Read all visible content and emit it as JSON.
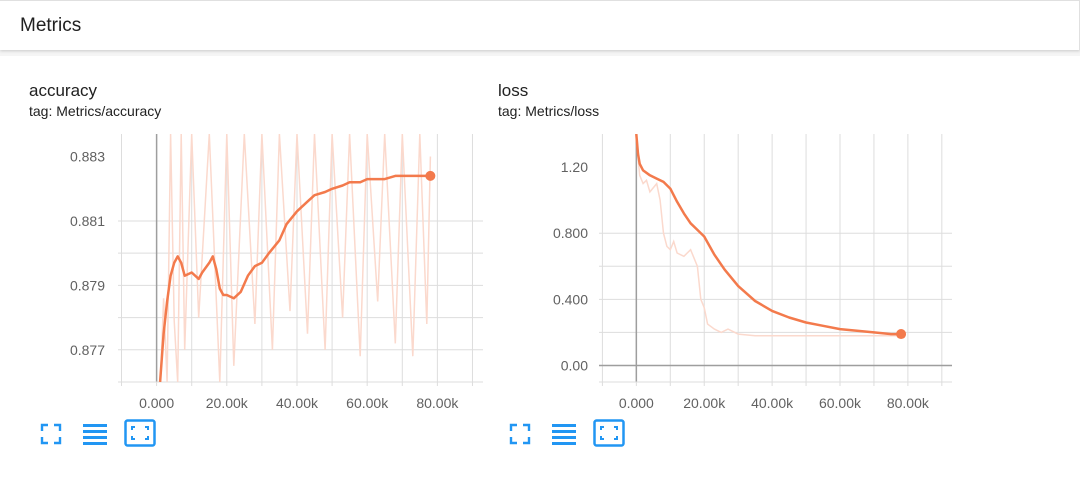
{
  "header": {
    "title": "Metrics"
  },
  "colors": {
    "line": "#f37a4c",
    "raw": "#fbd9cd",
    "icon": "#2196f3",
    "grid": "#dddddd",
    "axis": "#9e9e9e"
  },
  "icons": [
    "fit-domain-icon",
    "toggle-log-scale-icon",
    "expand-chart-icon"
  ],
  "cards": [
    {
      "title": "accuracy",
      "tag": "tag: Metrics/accuracy"
    },
    {
      "title": "loss",
      "tag": "tag: Metrics/loss"
    }
  ],
  "chart_data": [
    {
      "type": "line",
      "title": "accuracy",
      "subtitle": "tag: Metrics/accuracy",
      "xlim": [
        -11000,
        93000
      ],
      "ylim": [
        0.876,
        0.8837
      ],
      "x_ticks": [
        0,
        20000,
        40000,
        60000,
        80000
      ],
      "x_tick_labels": [
        "0.000",
        "20.00k",
        "40.00k",
        "60.00k",
        "80.00k"
      ],
      "y_ticks": [
        0.877,
        0.879,
        0.881,
        0.883
      ],
      "y_tick_labels": [
        "0.877",
        "0.879",
        "0.881",
        "0.883"
      ],
      "grid": true,
      "series": [
        {
          "kind": "smoothed",
          "x": [
            1000,
            2000,
            3000,
            4000,
            5000,
            6000,
            7000,
            8000,
            10000,
            12000,
            13000,
            15000,
            16000,
            17000,
            18000,
            19000,
            20000,
            22000,
            24000,
            26000,
            28000,
            30000,
            32000,
            35000,
            37000,
            40000,
            43000,
            45000,
            48000,
            50000,
            53000,
            55000,
            58000,
            60000,
            63000,
            65000,
            68000,
            70000,
            73000,
            75000,
            77000,
            78000
          ],
          "y": [
            0.876,
            0.8775,
            0.8785,
            0.8793,
            0.8797,
            0.8799,
            0.8797,
            0.8793,
            0.8794,
            0.8792,
            0.8794,
            0.8797,
            0.8799,
            0.8795,
            0.8789,
            0.8787,
            0.8787,
            0.8786,
            0.8788,
            0.8793,
            0.8796,
            0.8797,
            0.88,
            0.8804,
            0.8809,
            0.8813,
            0.8816,
            0.8818,
            0.8819,
            0.882,
            0.8821,
            0.8822,
            0.8822,
            0.8823,
            0.8823,
            0.8823,
            0.8824,
            0.8824,
            0.8824,
            0.8824,
            0.8824,
            0.8824
          ]
        },
        {
          "kind": "raw",
          "x": [
            1000,
            2000,
            3000,
            4000,
            5000,
            6000,
            7000,
            8000,
            10000,
            12000,
            15000,
            18000,
            20000,
            22000,
            25000,
            28000,
            30000,
            33000,
            35000,
            38000,
            40000,
            43000,
            45000,
            48000,
            50000,
            53000,
            55000,
            58000,
            60000,
            63000,
            65000,
            68000,
            70000,
            73000,
            75000,
            77000,
            78000
          ],
          "y": [
            0.8757,
            0.8786,
            0.876,
            0.8837,
            0.8779,
            0.876,
            0.8837,
            0.877,
            0.8837,
            0.878,
            0.8837,
            0.876,
            0.8837,
            0.8765,
            0.8837,
            0.8778,
            0.8837,
            0.877,
            0.8837,
            0.8782,
            0.8837,
            0.8775,
            0.8837,
            0.877,
            0.8837,
            0.878,
            0.8837,
            0.8768,
            0.8837,
            0.8785,
            0.8837,
            0.8772,
            0.8837,
            0.8768,
            0.8837,
            0.8778,
            0.883
          ]
        }
      ]
    },
    {
      "type": "line",
      "title": "loss",
      "subtitle": "tag: Metrics/loss",
      "xlim": [
        -11000,
        93000
      ],
      "ylim": [
        -0.1,
        1.4
      ],
      "x_ticks": [
        0,
        20000,
        40000,
        60000,
        80000
      ],
      "x_tick_labels": [
        "0.000",
        "20.00k",
        "40.00k",
        "60.00k",
        "80.00k"
      ],
      "y_ticks": [
        0.0,
        0.4,
        0.8,
        1.2
      ],
      "y_tick_labels": [
        "0.00",
        "0.400",
        "0.800",
        "1.20"
      ],
      "grid": true,
      "series": [
        {
          "kind": "smoothed",
          "x": [
            0,
            500,
            1000,
            2000,
            4000,
            6000,
            8000,
            10000,
            12000,
            14000,
            16000,
            18000,
            20000,
            23000,
            26000,
            30000,
            35000,
            40000,
            45000,
            50000,
            55000,
            60000,
            65000,
            70000,
            75000,
            78000
          ],
          "y": [
            1.4,
            1.28,
            1.22,
            1.18,
            1.15,
            1.13,
            1.11,
            1.07,
            0.99,
            0.92,
            0.86,
            0.82,
            0.78,
            0.67,
            0.58,
            0.48,
            0.39,
            0.33,
            0.29,
            0.26,
            0.24,
            0.22,
            0.21,
            0.2,
            0.19,
            0.19
          ]
        },
        {
          "kind": "raw",
          "x": [
            0,
            1000,
            2000,
            3000,
            4000,
            6000,
            7000,
            8000,
            9000,
            10000,
            11000,
            12000,
            14000,
            16000,
            18000,
            19000,
            20000,
            21000,
            23000,
            25000,
            27000,
            30000,
            35000,
            40000,
            45000,
            50000,
            55000,
            60000,
            65000,
            70000,
            75000,
            78000
          ],
          "y": [
            1.38,
            1.15,
            1.1,
            1.12,
            1.05,
            1.1,
            1.0,
            0.8,
            0.72,
            0.7,
            0.75,
            0.68,
            0.66,
            0.7,
            0.6,
            0.4,
            0.35,
            0.25,
            0.22,
            0.2,
            0.22,
            0.19,
            0.18,
            0.18,
            0.18,
            0.18,
            0.18,
            0.18,
            0.18,
            0.18,
            0.18,
            0.18
          ]
        }
      ]
    }
  ]
}
